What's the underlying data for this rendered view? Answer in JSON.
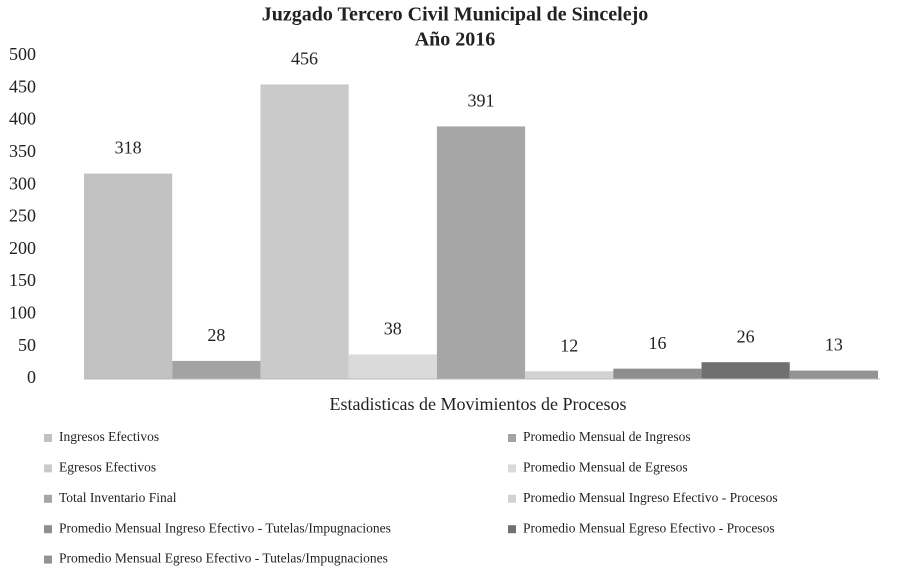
{
  "chart_data": {
    "type": "bar",
    "title": "Juzgado Tercero Civil Municipal de Sincelejo",
    "subtitle": "Año 2016",
    "x_label": "Estadisticas de Movimientos de Procesos",
    "categories": [
      null
    ],
    "series": [
      {
        "name": "Ingresos Efectivos",
        "color": "#c2c2c2",
        "values": [
          318
        ]
      },
      {
        "name": "Promedio Mensual de Ingresos",
        "color": "#a3a3a3",
        "values": [
          28
        ]
      },
      {
        "name": "Egresos Efectivos",
        "color": "#cacaca",
        "values": [
          456
        ]
      },
      {
        "name": "Promedio Mensual de Egresos",
        "color": "#dadada",
        "values": [
          38
        ]
      },
      {
        "name": "Total Inventario Final",
        "color": "#a6a6a6",
        "values": [
          391
        ]
      },
      {
        "name": "Promedio Mensual Ingreso Efectivo - Procesos",
        "color": "#d3d3d3",
        "values": [
          12
        ]
      },
      {
        "name": "Promedio Mensual Ingreso Efectivo - Tutelas/Impugnaciones",
        "color": "#8e8e8e",
        "values": [
          16
        ]
      },
      {
        "name": "Promedio Mensual Egreso Efectivo - Procesos",
        "color": "#707070",
        "values": [
          26
        ]
      },
      {
        "name": "Promedio Mensual Egreso Efectivo - Tutelas/Impugnaciones",
        "color": "#939393",
        "values": [
          13
        ]
      }
    ],
    "ylim": [
      0,
      500
    ],
    "yticks": [
      0,
      50,
      100,
      150,
      200,
      250,
      300,
      350,
      400,
      450,
      500
    ],
    "grid": false,
    "legend": "bottom"
  }
}
